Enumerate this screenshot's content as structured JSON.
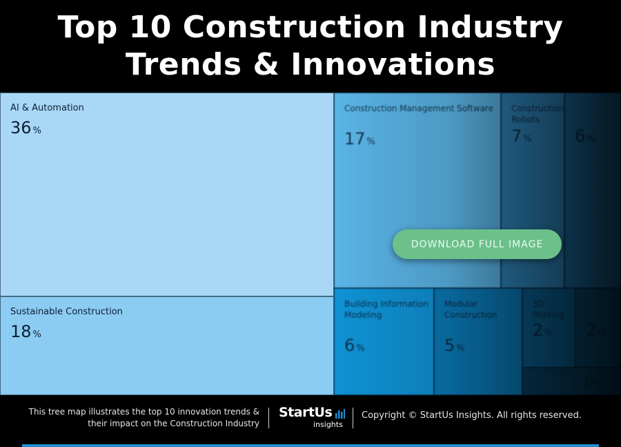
{
  "header": {
    "title_line1": "Top 10 Construction Industry",
    "title_line2": "Trends & Innovations"
  },
  "chart_data": {
    "type": "treemap",
    "unit": "%",
    "items": [
      {
        "label": "AI & Automation",
        "value": 36,
        "color": "#a9d8f7"
      },
      {
        "label": "Sustainable Construction",
        "value": 18,
        "color": "#8cccf2"
      },
      {
        "label": "Construction Management Software",
        "value": 17,
        "color": "#5ab4e6"
      },
      {
        "label": "Construction Robots",
        "value": 7,
        "color": "#2f86bd"
      },
      {
        "label": "",
        "value": 6,
        "color": "#1d6fa5"
      },
      {
        "label": "Building Information Modeling",
        "value": 6,
        "color": "#0f92d4"
      },
      {
        "label": "Modular Construction",
        "value": 5,
        "color": "#0a78b5"
      },
      {
        "label": "3D Printing",
        "value": 2,
        "color": "#0a5f90"
      },
      {
        "label": "",
        "value": 2,
        "color": "#094f7a"
      },
      {
        "label": "",
        "value": 1,
        "color": "#073f63"
      }
    ]
  },
  "overlay": {
    "download_label": "DOWNLOAD FULL IMAGE",
    "download_color": "#6cc08a"
  },
  "footer": {
    "caption_line1": "This tree map illustrates the top 10 innovation trends &",
    "caption_line2": "their impact on the Construction Industry",
    "logo_text": "StartUs",
    "logo_subtext": "insights",
    "copyright": "Copyright © StartUs Insights. All rights reserved.",
    "accent_color": "#1f8fd0"
  }
}
